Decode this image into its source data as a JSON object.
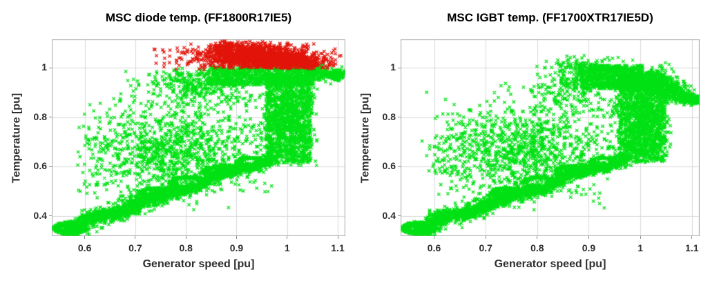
{
  "figure": {
    "background": "#ffffff",
    "title_color": "#000000",
    "tick_text_color": "#2e2e2e",
    "grid_color": "#d9d9d9",
    "border_color": "#a6a6a6",
    "tick_mark_color": "#8c8c8c",
    "green_color": "#00e114",
    "red_color": "#e2140a",
    "seed": 20240917
  },
  "chart_data": [
    {
      "type": "scatter",
      "title": "MSC diode temp. (FF1800R17IE5)",
      "xlabel": "Generator speed [pu]",
      "ylabel": "Temperature [pu]",
      "xlim": [
        0.535,
        1.115
      ],
      "ylim": [
        0.318,
        1.115
      ],
      "grid": true,
      "marker": "x",
      "x_ticks": [
        {
          "v": 0.6,
          "label": "0.6"
        },
        {
          "v": 0.7,
          "label": "0.7"
        },
        {
          "v": 0.8,
          "label": "0.8"
        },
        {
          "v": 0.9,
          "label": "0.9"
        },
        {
          "v": 1.0,
          "label": "1"
        },
        {
          "v": 1.1,
          "label": "1.1"
        }
      ],
      "y_ticks": [
        {
          "v": 0.4,
          "label": "0.4"
        },
        {
          "v": 0.6,
          "label": "0.6"
        },
        {
          "v": 0.8,
          "label": "0.8"
        },
        {
          "v": 1.0,
          "label": "1"
        }
      ],
      "series": [
        {
          "name": "green-points",
          "color": "#00e114",
          "clusters": [
            {
              "type": "ring",
              "cx": 0.571,
              "cy": 0.35,
              "rx": 0.027,
              "ry": 0.02,
              "jitter": 0.45,
              "count": 520
            },
            {
              "type": "gauss",
              "cx": 0.578,
              "cy": 0.352,
              "sx": 0.016,
              "sy": 0.013,
              "count": 260
            },
            {
              "type": "band",
              "x0": 0.585,
              "y0": 0.362,
              "x1": 0.975,
              "y1": 0.64,
              "thickness": 0.01,
              "wiggle_amp": 0.012,
              "wiggle_freq": 19,
              "count": 1700
            },
            {
              "type": "band",
              "x0": 0.6,
              "y0": 0.372,
              "x1": 0.78,
              "y1": 0.505,
              "thickness": 0.016,
              "wiggle_amp": 0.008,
              "wiggle_freq": 13,
              "count": 500
            },
            {
              "type": "ring",
              "cx": 0.74,
              "cy": 0.492,
              "rx": 0.027,
              "ry": 0.019,
              "jitter": 0.5,
              "count": 170
            },
            {
              "type": "ring",
              "cx": 0.803,
              "cy": 0.536,
              "rx": 0.03,
              "ry": 0.021,
              "jitter": 0.5,
              "count": 190
            },
            {
              "type": "ring",
              "cx": 0.868,
              "cy": 0.58,
              "rx": 0.03,
              "ry": 0.021,
              "jitter": 0.5,
              "count": 190
            },
            {
              "type": "ring",
              "cx": 0.928,
              "cy": 0.618,
              "rx": 0.024,
              "ry": 0.017,
              "jitter": 0.5,
              "count": 160
            },
            {
              "type": "gauss",
              "cx": 0.775,
              "cy": 0.665,
              "sx": 0.088,
              "sy": 0.092,
              "count": 1150,
              "clip": {
                "x0": 0.585,
                "x1": 0.975,
                "y0": 0.42,
                "y1": 0.93
              }
            },
            {
              "type": "gauss",
              "cx": 0.64,
              "cy": 0.63,
              "sx": 0.026,
              "sy": 0.075,
              "count": 60
            },
            {
              "type": "rect",
              "x0": 0.958,
              "x1": 1.048,
              "y0": 0.615,
              "y1": 0.975,
              "count": 1250
            },
            {
              "type": "gauss",
              "cx": 1.002,
              "cy": 0.8,
              "sx": 0.03,
              "sy": 0.1,
              "count": 500,
              "clip": {
                "x0": 0.94,
                "x1": 1.06,
                "y0": 0.6,
                "y1": 0.98
              }
            },
            {
              "type": "gauss",
              "cx": 0.853,
              "cy": 0.895,
              "sx": 0.048,
              "sy": 0.042,
              "count": 160
            },
            {
              "type": "rect",
              "x0": 0.845,
              "x1": 1.055,
              "y0": 0.93,
              "y1": 1.005,
              "count": 950
            },
            {
              "type": "gauss",
              "cx": 0.8,
              "cy": 0.945,
              "sx": 0.04,
              "sy": 0.032,
              "count": 220,
              "clip": {
                "y1": 1.0
              }
            },
            {
              "type": "band",
              "x0": 1.04,
              "y0": 0.99,
              "x1": 1.112,
              "y1": 0.965,
              "thickness": 0.012,
              "wiggle_amp": 0.004,
              "wiggle_freq": 9,
              "count": 320
            }
          ]
        },
        {
          "name": "red-points",
          "color": "#e2140a",
          "clusters": [
            {
              "type": "gauss",
              "cx": 0.905,
              "cy": 1.045,
              "sx": 0.038,
              "sy": 0.026,
              "count": 520,
              "clip": {
                "y0": 0.998,
                "y1": 1.105
              }
            },
            {
              "type": "gauss",
              "cx": 0.955,
              "cy": 1.05,
              "sx": 0.045,
              "sy": 0.028,
              "count": 700,
              "clip": {
                "y0": 0.998,
                "y1": 1.108
              }
            },
            {
              "type": "gauss",
              "cx": 1.005,
              "cy": 1.028,
              "sx": 0.038,
              "sy": 0.02,
              "count": 520,
              "clip": {
                "y0": 0.998,
                "y1": 1.06
              }
            },
            {
              "type": "band",
              "x0": 0.862,
              "y0": 1.088,
              "x1": 1.058,
              "y1": 1.012,
              "thickness": 0.013,
              "wiggle_amp": 0.004,
              "wiggle_freq": 11,
              "count": 330
            },
            {
              "type": "gauss",
              "cx": 0.815,
              "cy": 1.042,
              "sx": 0.042,
              "sy": 0.03,
              "count": 80,
              "clip": {
                "x0": 0.735,
                "y0": 0.992,
                "y1": 1.103
              }
            }
          ]
        }
      ]
    },
    {
      "type": "scatter",
      "title": "MSC IGBT temp. (FF1700XTR17IE5D)",
      "xlabel": "Generator speed [pu]",
      "ylabel": "Temperature [pu]",
      "xlim": [
        0.535,
        1.115
      ],
      "ylim": [
        0.318,
        1.115
      ],
      "grid": true,
      "marker": "x",
      "x_ticks": [
        {
          "v": 0.6,
          "label": "0.6"
        },
        {
          "v": 0.7,
          "label": "0.7"
        },
        {
          "v": 0.8,
          "label": "0.8"
        },
        {
          "v": 0.9,
          "label": "0.9"
        },
        {
          "v": 1.0,
          "label": "1"
        },
        {
          "v": 1.1,
          "label": "1.1"
        }
      ],
      "y_ticks": [
        {
          "v": 0.4,
          "label": "0.4"
        },
        {
          "v": 0.6,
          "label": "0.6"
        },
        {
          "v": 0.8,
          "label": "0.8"
        },
        {
          "v": 1.0,
          "label": "1"
        }
      ],
      "series": [
        {
          "name": "green-points",
          "color": "#00e114",
          "clusters": [
            {
              "type": "ring",
              "cx": 0.571,
              "cy": 0.35,
              "rx": 0.027,
              "ry": 0.02,
              "jitter": 0.45,
              "count": 520
            },
            {
              "type": "gauss",
              "cx": 0.578,
              "cy": 0.352,
              "sx": 0.016,
              "sy": 0.013,
              "count": 260
            },
            {
              "type": "band",
              "x0": 0.585,
              "y0": 0.362,
              "x1": 0.975,
              "y1": 0.64,
              "thickness": 0.01,
              "wiggle_amp": 0.012,
              "wiggle_freq": 19,
              "count": 1700
            },
            {
              "type": "band",
              "x0": 0.6,
              "y0": 0.372,
              "x1": 0.78,
              "y1": 0.505,
              "thickness": 0.016,
              "wiggle_amp": 0.008,
              "wiggle_freq": 13,
              "count": 500
            },
            {
              "type": "ring",
              "cx": 0.74,
              "cy": 0.492,
              "rx": 0.027,
              "ry": 0.019,
              "jitter": 0.5,
              "count": 170
            },
            {
              "type": "ring",
              "cx": 0.803,
              "cy": 0.536,
              "rx": 0.03,
              "ry": 0.021,
              "jitter": 0.5,
              "count": 190
            },
            {
              "type": "ring",
              "cx": 0.868,
              "cy": 0.58,
              "rx": 0.03,
              "ry": 0.021,
              "jitter": 0.5,
              "count": 190
            },
            {
              "type": "ring",
              "cx": 0.928,
              "cy": 0.618,
              "rx": 0.024,
              "ry": 0.017,
              "jitter": 0.5,
              "count": 160
            },
            {
              "type": "gauss",
              "cx": 0.775,
              "cy": 0.665,
              "sx": 0.088,
              "sy": 0.092,
              "count": 1150,
              "clip": {
                "x0": 0.585,
                "x1": 0.975,
                "y0": 0.42,
                "y1": 0.93
              }
            },
            {
              "type": "gauss",
              "cx": 0.64,
              "cy": 0.63,
              "sx": 0.026,
              "sy": 0.075,
              "count": 60
            },
            {
              "type": "rect",
              "x0": 0.958,
              "x1": 1.048,
              "y0": 0.615,
              "y1": 0.975,
              "count": 1250
            },
            {
              "type": "gauss",
              "cx": 1.002,
              "cy": 0.8,
              "sx": 0.03,
              "sy": 0.1,
              "count": 500,
              "clip": {
                "x0": 0.94,
                "x1": 1.06,
                "y0": 0.6,
                "y1": 0.98
              }
            },
            {
              "type": "gauss",
              "cx": 0.853,
              "cy": 0.895,
              "sx": 0.048,
              "sy": 0.042,
              "count": 160
            },
            {
              "type": "rect",
              "x0": 0.885,
              "x1": 1.005,
              "y0": 0.915,
              "y1": 1.01,
              "count": 850
            },
            {
              "type": "gauss",
              "cx": 0.87,
              "cy": 0.965,
              "sx": 0.028,
              "sy": 0.038,
              "count": 140,
              "clip": {
                "y1": 1.04
              }
            },
            {
              "type": "gauss",
              "cx": 0.9,
              "cy": 1.01,
              "sx": 0.04,
              "sy": 0.02,
              "count": 90,
              "clip": {
                "y1": 1.05
              }
            },
            {
              "type": "band",
              "x0": 0.995,
              "y0": 0.96,
              "x1": 1.112,
              "y1": 0.86,
              "thickness": 0.03,
              "taper": 0.35,
              "wiggle_amp": 0.004,
              "wiggle_freq": 7,
              "count": 750
            },
            {
              "type": "gauss",
              "cx": 1.113,
              "cy": 0.856,
              "sx": 0.004,
              "sy": 0.005,
              "count": 12
            }
          ]
        }
      ]
    }
  ]
}
